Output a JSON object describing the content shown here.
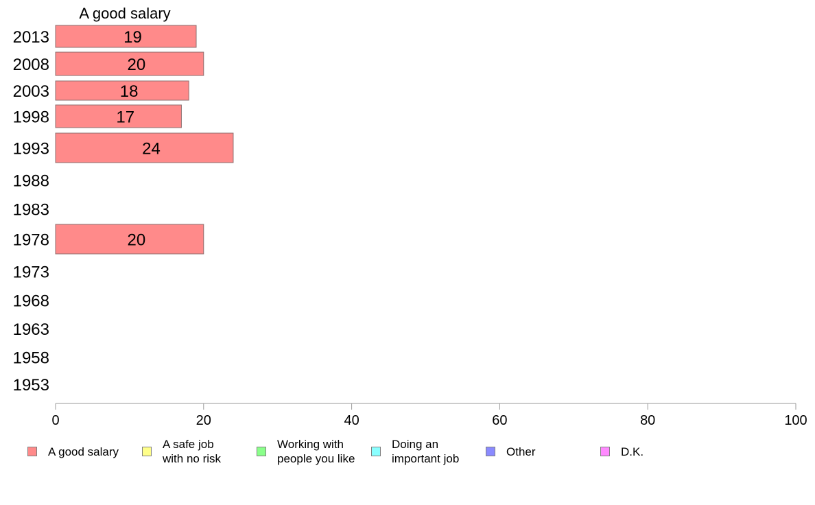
{
  "chart_data": {
    "type": "bar",
    "orientation": "horizontal",
    "title": "",
    "column_title": "A good salary",
    "categories": [
      "2013",
      "2008",
      "2003",
      "1998",
      "1993",
      "1988",
      "1983",
      "1978",
      "1973",
      "1968",
      "1963",
      "1958",
      "1953"
    ],
    "series": [
      {
        "name": "A good salary",
        "color": "#ff8a8a",
        "values": [
          19,
          20,
          18,
          17,
          24,
          null,
          null,
          20,
          null,
          null,
          null,
          null,
          null
        ]
      }
    ],
    "xlim": [
      0,
      100
    ],
    "xticks": [
      "0",
      "20",
      "40",
      "60",
      "80",
      "100"
    ],
    "xlabel": "",
    "ylabel": "",
    "grid": false,
    "legend_position": "bottom",
    "legend": [
      {
        "label": "A good salary",
        "color": "#ff8a8a"
      },
      {
        "label": "A safe job\nwith no risk",
        "color": "#ffff8a"
      },
      {
        "label": "Working with\npeople you like",
        "color": "#8aff8a"
      },
      {
        "label": "Doing an\nimportant job",
        "color": "#8affff"
      },
      {
        "label": "Other",
        "color": "#8a8aff"
      },
      {
        "label": "D.K.",
        "color": "#ff8aff"
      }
    ]
  }
}
